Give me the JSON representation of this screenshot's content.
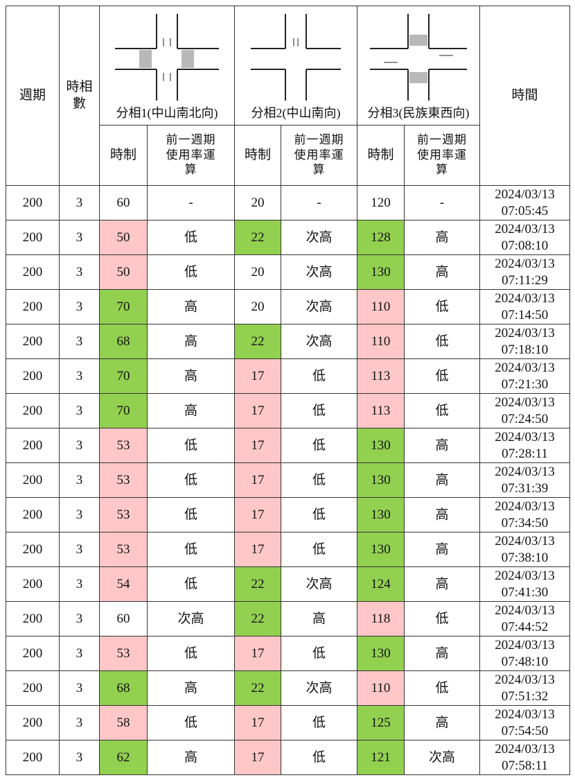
{
  "header": {
    "cycle": "週期",
    "phase_count": "時相數",
    "phases": [
      {
        "label": "分相1(中山南北向)",
        "timing": "時制",
        "usage": "前一週期使用率運算"
      },
      {
        "label": "分相2(中山南向)",
        "timing": "時制",
        "usage": "前一週期使用率運算"
      },
      {
        "label": "分相3(民族東西向)",
        "timing": "時制",
        "usage": "前一週期使用率運算"
      }
    ],
    "time": "時間"
  },
  "colors": {
    "pink": "#ffc7c7",
    "green": "#92d050"
  },
  "table": {
    "rows": [
      {
        "cycle": "200",
        "phases": "3",
        "cells": [
          [
            "60",
            "-",
            null
          ],
          [
            "20",
            "-",
            null
          ],
          [
            "120",
            "-",
            null
          ]
        ],
        "date": "2024/03/13",
        "time": "07:05:45"
      },
      {
        "cycle": "200",
        "phases": "3",
        "cells": [
          [
            "50",
            "低",
            "pink"
          ],
          [
            "22",
            "次高",
            "green"
          ],
          [
            "128",
            "高",
            "green"
          ]
        ],
        "date": "2024/03/13",
        "time": "07:08:10"
      },
      {
        "cycle": "200",
        "phases": "3",
        "cells": [
          [
            "50",
            "低",
            "pink"
          ],
          [
            "20",
            "次高",
            null
          ],
          [
            "130",
            "高",
            "green"
          ]
        ],
        "date": "2024/03/13",
        "time": "07:11:29"
      },
      {
        "cycle": "200",
        "phases": "3",
        "cells": [
          [
            "70",
            "高",
            "green"
          ],
          [
            "20",
            "次高",
            null
          ],
          [
            "110",
            "低",
            "pink"
          ]
        ],
        "date": "2024/03/13",
        "time": "07:14:50"
      },
      {
        "cycle": "200",
        "phases": "3",
        "cells": [
          [
            "68",
            "高",
            "green"
          ],
          [
            "22",
            "次高",
            "green"
          ],
          [
            "110",
            "低",
            "pink"
          ]
        ],
        "date": "2024/03/13",
        "time": "07:18:10"
      },
      {
        "cycle": "200",
        "phases": "3",
        "cells": [
          [
            "70",
            "高",
            "green"
          ],
          [
            "17",
            "低",
            "pink"
          ],
          [
            "113",
            "低",
            "pink"
          ]
        ],
        "date": "2024/03/13",
        "time": "07:21:30"
      },
      {
        "cycle": "200",
        "phases": "3",
        "cells": [
          [
            "70",
            "高",
            "green"
          ],
          [
            "17",
            "低",
            "pink"
          ],
          [
            "113",
            "低",
            "pink"
          ]
        ],
        "date": "2024/03/13",
        "time": "07:24:50"
      },
      {
        "cycle": "200",
        "phases": "3",
        "cells": [
          [
            "53",
            "低",
            "pink"
          ],
          [
            "17",
            "低",
            "pink"
          ],
          [
            "130",
            "高",
            "green"
          ]
        ],
        "date": "2024/03/13",
        "time": "07:28:11"
      },
      {
        "cycle": "200",
        "phases": "3",
        "cells": [
          [
            "53",
            "低",
            "pink"
          ],
          [
            "17",
            "低",
            "pink"
          ],
          [
            "130",
            "高",
            "green"
          ]
        ],
        "date": "2024/03/13",
        "time": "07:31:39"
      },
      {
        "cycle": "200",
        "phases": "3",
        "cells": [
          [
            "53",
            "低",
            "pink"
          ],
          [
            "17",
            "低",
            "pink"
          ],
          [
            "130",
            "高",
            "green"
          ]
        ],
        "date": "2024/03/13",
        "time": "07:34:50"
      },
      {
        "cycle": "200",
        "phases": "3",
        "cells": [
          [
            "53",
            "低",
            "pink"
          ],
          [
            "17",
            "低",
            "pink"
          ],
          [
            "130",
            "高",
            "green"
          ]
        ],
        "date": "2024/03/13",
        "time": "07:38:10"
      },
      {
        "cycle": "200",
        "phases": "3",
        "cells": [
          [
            "54",
            "低",
            "pink"
          ],
          [
            "22",
            "次高",
            "green"
          ],
          [
            "124",
            "高",
            "green"
          ]
        ],
        "date": "2024/03/13",
        "time": "07:41:30"
      },
      {
        "cycle": "200",
        "phases": "3",
        "cells": [
          [
            "60",
            "次高",
            null
          ],
          [
            "22",
            "高",
            "green"
          ],
          [
            "118",
            "低",
            "pink"
          ]
        ],
        "date": "2024/03/13",
        "time": "07:44:52"
      },
      {
        "cycle": "200",
        "phases": "3",
        "cells": [
          [
            "53",
            "低",
            "pink"
          ],
          [
            "17",
            "低",
            "pink"
          ],
          [
            "130",
            "高",
            "green"
          ]
        ],
        "date": "2024/03/13",
        "time": "07:48:10"
      },
      {
        "cycle": "200",
        "phases": "3",
        "cells": [
          [
            "68",
            "高",
            "green"
          ],
          [
            "22",
            "次高",
            "green"
          ],
          [
            "110",
            "低",
            "pink"
          ]
        ],
        "date": "2024/03/13",
        "time": "07:51:32"
      },
      {
        "cycle": "200",
        "phases": "3",
        "cells": [
          [
            "58",
            "低",
            "pink"
          ],
          [
            "17",
            "低",
            "pink"
          ],
          [
            "125",
            "高",
            "green"
          ]
        ],
        "date": "2024/03/13",
        "time": "07:54:50"
      },
      {
        "cycle": "200",
        "phases": "3",
        "cells": [
          [
            "62",
            "高",
            "green"
          ],
          [
            "17",
            "低",
            "pink"
          ],
          [
            "121",
            "次高",
            "green"
          ]
        ],
        "date": "2024/03/13",
        "time": "07:58:11"
      }
    ]
  }
}
